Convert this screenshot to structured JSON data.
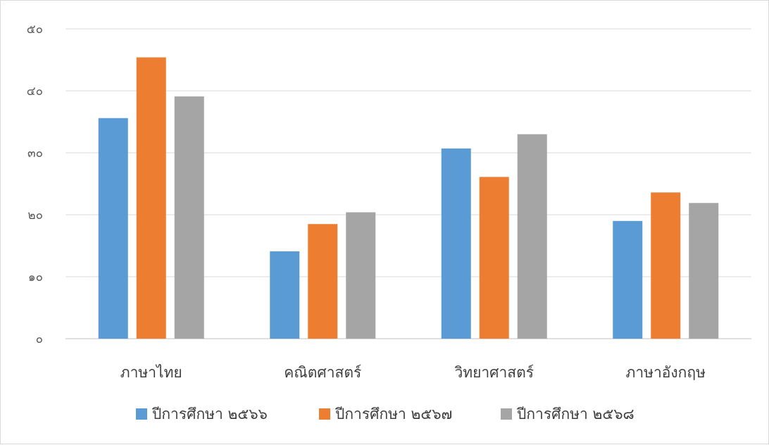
{
  "chart_data": {
    "type": "bar",
    "title": "",
    "xlabel": "",
    "ylabel": "",
    "categories": [
      "ภาษาไทย",
      "คณิตศาสตร์",
      "วิทยาศาสตร์",
      "ภาษาอังกฤษ"
    ],
    "series": [
      {
        "name": "ปีการศึกษา ๒๕๖๖",
        "color": "#5b9bd5",
        "values": [
          35.6,
          14.1,
          30.7,
          19.0
        ]
      },
      {
        "name": "ปีการศึกษา ๒๕๖๗",
        "color": "#ed7d31",
        "values": [
          45.4,
          18.5,
          26.1,
          23.6
        ]
      },
      {
        "name": "ปีการศึกษา ๒๕๖๘",
        "color": "#a5a5a5",
        "values": [
          39.1,
          20.4,
          33.0,
          21.9
        ]
      }
    ],
    "ylim": [
      0,
      50
    ],
    "yticks": [
      0,
      10,
      20,
      30,
      40,
      50
    ],
    "ytick_labels": [
      "๐",
      "๑๐",
      "๒๐",
      "๓๐",
      "๔๐",
      "๕๐"
    ],
    "grid": true,
    "legend_position": "bottom"
  }
}
